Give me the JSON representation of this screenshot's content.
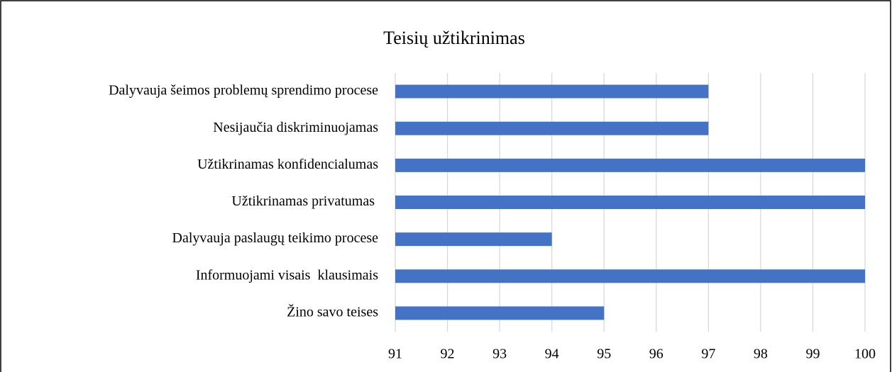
{
  "chart_data": {
    "type": "bar",
    "orientation": "horizontal",
    "title": "Teisių užtikrinimas",
    "categories": [
      "Dalyvauja šeimos problemų sprendimo procese",
      "Nesijaučia diskriminuojamas",
      "Užtikrinamas konfidencialumas",
      "Užtikrinamas privatumas ",
      "Dalyvauja paslaugų teikimo procese",
      "Informuojami visais  klausimais",
      "Žino savo teises"
    ],
    "values": [
      97,
      97,
      100,
      100,
      94,
      100,
      95
    ],
    "color": "#4472c4",
    "xlim": [
      91,
      100
    ],
    "xticks": [
      91,
      92,
      93,
      94,
      95,
      96,
      97,
      98,
      99,
      100
    ],
    "grid": true
  }
}
